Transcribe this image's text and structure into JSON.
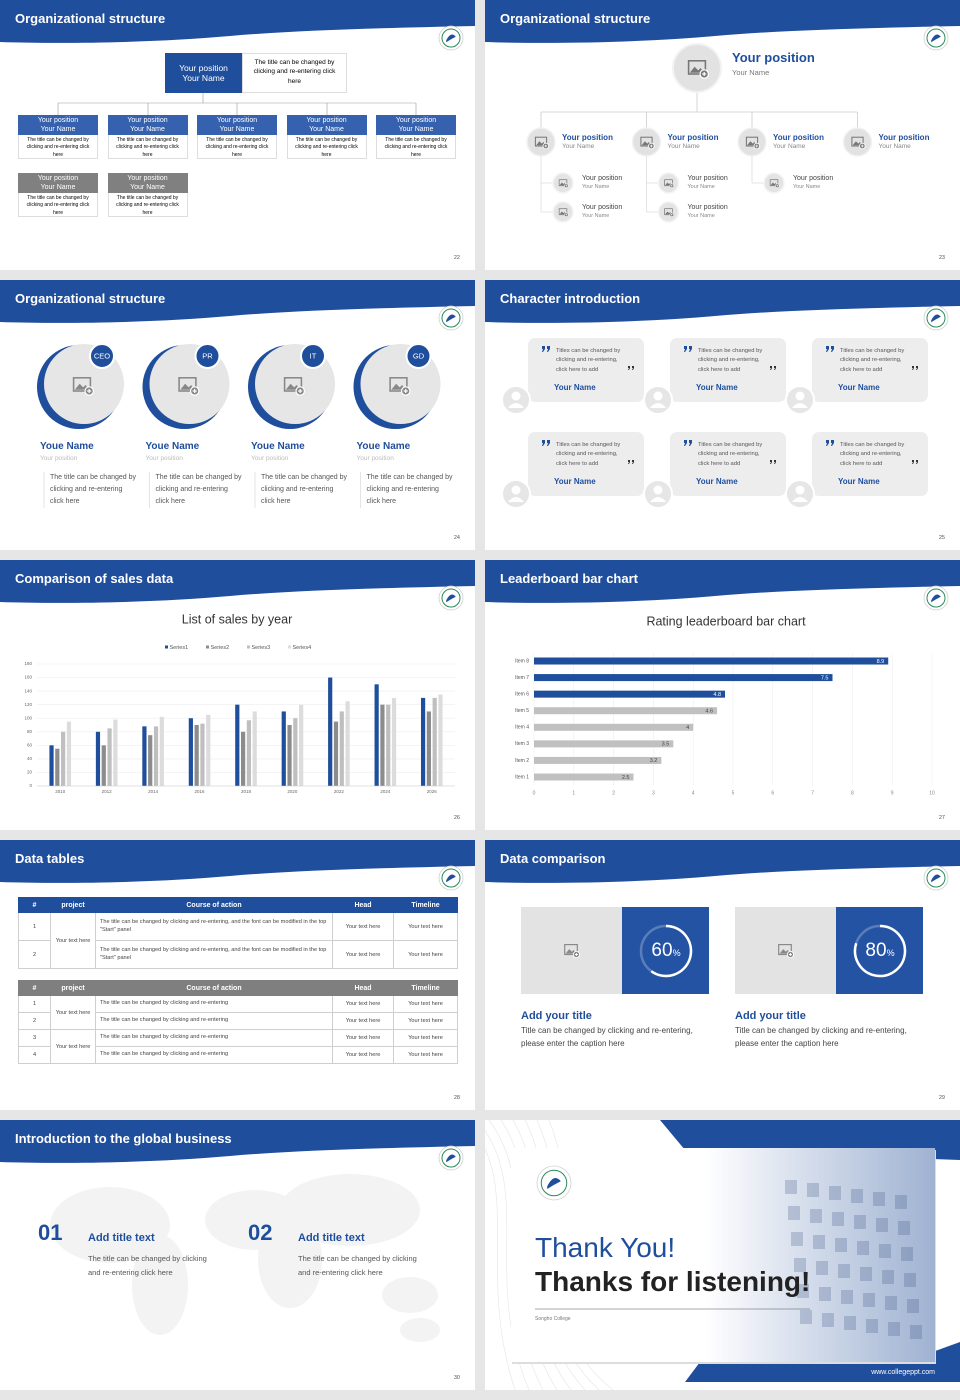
{
  "slides": [
    {
      "title": "Organizational structure",
      "page": "22",
      "top": {
        "position": "Your position",
        "name": "Your Name",
        "note": "The title can be changed by clicking and re-entering click here"
      },
      "boxes": [
        {
          "position": "Your position",
          "name": "Your Name",
          "text": "The title can be changed by clicking and re-entering click here",
          "color": "#3561ae"
        },
        {
          "position": "Your position",
          "name": "Your Name",
          "text": "The title can be changed by clicking and re-entering click here",
          "color": "#3561ae"
        },
        {
          "position": "Your position",
          "name": "Your Name",
          "text": "The title can be changed by clicking and re-entering click here",
          "color": "#3561ae"
        },
        {
          "position": "Your position",
          "name": "Your Name",
          "text": "The title can be changed by clicking and re-entering click here",
          "color": "#3561ae"
        },
        {
          "position": "Your position",
          "name": "Your Name",
          "text": "The title can be changed by clicking and re-entering click here",
          "color": "#3561ae"
        },
        {
          "position": "Your position",
          "name": "Your Name",
          "text": "The title can be changed by clicking and re-entering click here",
          "color": "#808080"
        },
        {
          "position": "Your position",
          "name": "Your Name",
          "text": "The title can be changed by clicking and re-entering click here",
          "color": "#808080"
        }
      ]
    },
    {
      "title": "Organizational structure",
      "page": "23",
      "top": {
        "position": "Your position",
        "name": "Your Name"
      },
      "members": [
        {
          "position": "Your position",
          "name": "Your Name",
          "children": [
            {
              "position": "Your position",
              "name": "Your Name"
            },
            {
              "position": "Your position",
              "name": "Your Name"
            }
          ]
        },
        {
          "position": "Your position",
          "name": "Your Name",
          "children": [
            {
              "position": "Your position",
              "name": "Your Name"
            },
            {
              "position": "Your position",
              "name": "Your Name"
            }
          ]
        },
        {
          "position": "Your position",
          "name": "Your Name",
          "children": [
            {
              "position": "Your position",
              "name": "Your Name"
            }
          ]
        },
        {
          "position": "Your position",
          "name": "Your Name",
          "children": []
        }
      ]
    },
    {
      "title": "Organizational structure",
      "page": "24",
      "members": [
        {
          "badge": "CEO",
          "name": "Youe Name",
          "position": "Your position",
          "text": "The title can be changed by clicking and re-entering click here"
        },
        {
          "badge": "PR",
          "name": "Youe Name",
          "position": "Your position",
          "text": "The title can be changed by clicking and re-entering click here"
        },
        {
          "badge": "IT",
          "name": "Youe Name",
          "position": "Your position",
          "text": "The title can be changed by clicking and re-entering click here"
        },
        {
          "badge": "GD",
          "name": "Youe Name",
          "position": "Your position",
          "text": "The title can be changed by clicking and re-entering click here"
        }
      ]
    },
    {
      "title": "Character introduction",
      "page": "25",
      "cards": [
        {
          "quote": "Titles can be changed by clicking and re-entering, click here to add",
          "name": "Your Name"
        },
        {
          "quote": "Titles can be changed by clicking and re-entering, click here to add",
          "name": "Your Name"
        },
        {
          "quote": "Titles can be changed by clicking and re-entering, click here to add",
          "name": "Your Name"
        },
        {
          "quote": "Titles can be changed by clicking and re-entering, click here to add",
          "name": "Your Name"
        },
        {
          "quote": "Titles can be changed by clicking and re-entering, click here to add",
          "name": "Your Name"
        },
        {
          "quote": "Titles can be changed by clicking and re-entering, click here to add",
          "name": "Your Name"
        }
      ]
    },
    {
      "title": "Comparison of sales data",
      "page": "26"
    },
    {
      "title": "Leaderboard bar chart",
      "page": "27"
    },
    {
      "title": "Data tables",
      "page": "28",
      "tables": [
        {
          "header_color": "#1f4e9c",
          "headers": [
            "#",
            "project",
            "Course of action",
            "Head",
            "Timeline"
          ],
          "groups": [
            {
              "project": "Your text here",
              "rows": [
                {
                  "num": "1",
                  "action": "The title can be changed by clicking and re-entering, and the font can be modified in the top \"Start\" panel",
                  "head": "Your text here",
                  "timeline": "Your text here"
                },
                {
                  "num": "2",
                  "action": "The title can be changed by clicking and re-entering, and the font can be modified in the top \"Start\" panel",
                  "head": "Your text here",
                  "timeline": "Your text here"
                }
              ]
            }
          ]
        },
        {
          "header_color": "#7f7f7f",
          "headers": [
            "#",
            "project",
            "Course of action",
            "Head",
            "Timeline"
          ],
          "groups": [
            {
              "project": "Your text here",
              "rows": [
                {
                  "num": "1",
                  "action": "The title can be changed by clicking and re-entering",
                  "head": "Your text here",
                  "timeline": "Your text here"
                },
                {
                  "num": "2",
                  "action": "The title can be changed by clicking and re-entering",
                  "head": "Your text here",
                  "timeline": "Your text here"
                }
              ]
            },
            {
              "project": "Your text here",
              "rows": [
                {
                  "num": "3",
                  "action": "The title can be changed by clicking and re-entering",
                  "head": "Your text here",
                  "timeline": "Your text here"
                },
                {
                  "num": "4",
                  "action": "The title can be changed by clicking and re-entering",
                  "head": "Your text here",
                  "timeline": "Your text here"
                }
              ]
            }
          ]
        }
      ]
    },
    {
      "title": "Data comparison",
      "page": "29",
      "items": [
        {
          "percent": 60,
          "unit": "%",
          "title": "Add your title",
          "text": "Title can be changed by clicking and re-entering, please enter the caption here"
        },
        {
          "percent": 80,
          "unit": "%",
          "title": "Add your title",
          "text": "Title can be changed by clicking and re-entering, please enter the caption here"
        }
      ]
    },
    {
      "title": "Introduction to the global business",
      "page": "30",
      "items": [
        {
          "num": "01",
          "title": "Add title text",
          "text": "The title can be changed by clicking and re-entering click here"
        },
        {
          "num": "02",
          "title": "Add title text",
          "text": "The title can be changed by clicking and re-entering click here"
        }
      ]
    },
    {
      "thanks": "Thank You!",
      "subtitle": "Thanks for listening!",
      "school": "Songho College",
      "url": "www.collegeppt.com"
    }
  ],
  "chart_data": [
    {
      "type": "bar",
      "title": "List of sales by year",
      "categories": [
        "2010",
        "2012",
        "2014",
        "2016",
        "2018",
        "2020",
        "2022",
        "2024",
        "2026"
      ],
      "series": [
        {
          "name": "Series1",
          "color": "#1f4e9c",
          "values": [
            60,
            80,
            88,
            100,
            120,
            110,
            160,
            150,
            130
          ]
        },
        {
          "name": "Series2",
          "color": "#8c8c8c",
          "values": [
            55,
            60,
            75,
            90,
            80,
            90,
            95,
            120,
            110
          ]
        },
        {
          "name": "Series3",
          "color": "#bfbfbf",
          "values": [
            80,
            85,
            88,
            92,
            97,
            100,
            110,
            120,
            130
          ]
        },
        {
          "name": "Series4",
          "color": "#dcdcdc",
          "values": [
            95,
            98,
            102,
            105,
            110,
            120,
            125,
            130,
            135
          ]
        }
      ],
      "ylim": [
        0,
        180
      ],
      "yticks": [
        0,
        20,
        40,
        60,
        80,
        100,
        120,
        140,
        160,
        180
      ],
      "grid": true
    },
    {
      "type": "barh",
      "title": "Rating leaderboard bar chart",
      "categories": [
        "Item 1",
        "Item 2",
        "Item 3",
        "Item 4",
        "Item 5",
        "Item 6",
        "Item 7",
        "Item 8"
      ],
      "values": [
        2.5,
        3.2,
        3.5,
        4,
        4.6,
        4.8,
        7.5,
        8.9
      ],
      "colors": [
        "#c0c0c0",
        "#c0c0c0",
        "#c0c0c0",
        "#c0c0c0",
        "#c0c0c0",
        "#1f4e9c",
        "#1f4e9c",
        "#1f4e9c"
      ],
      "xlim": [
        0,
        10
      ],
      "xticks": [
        0,
        1,
        2,
        3,
        4,
        5,
        6,
        7,
        8,
        9,
        10
      ],
      "grid": true
    }
  ]
}
